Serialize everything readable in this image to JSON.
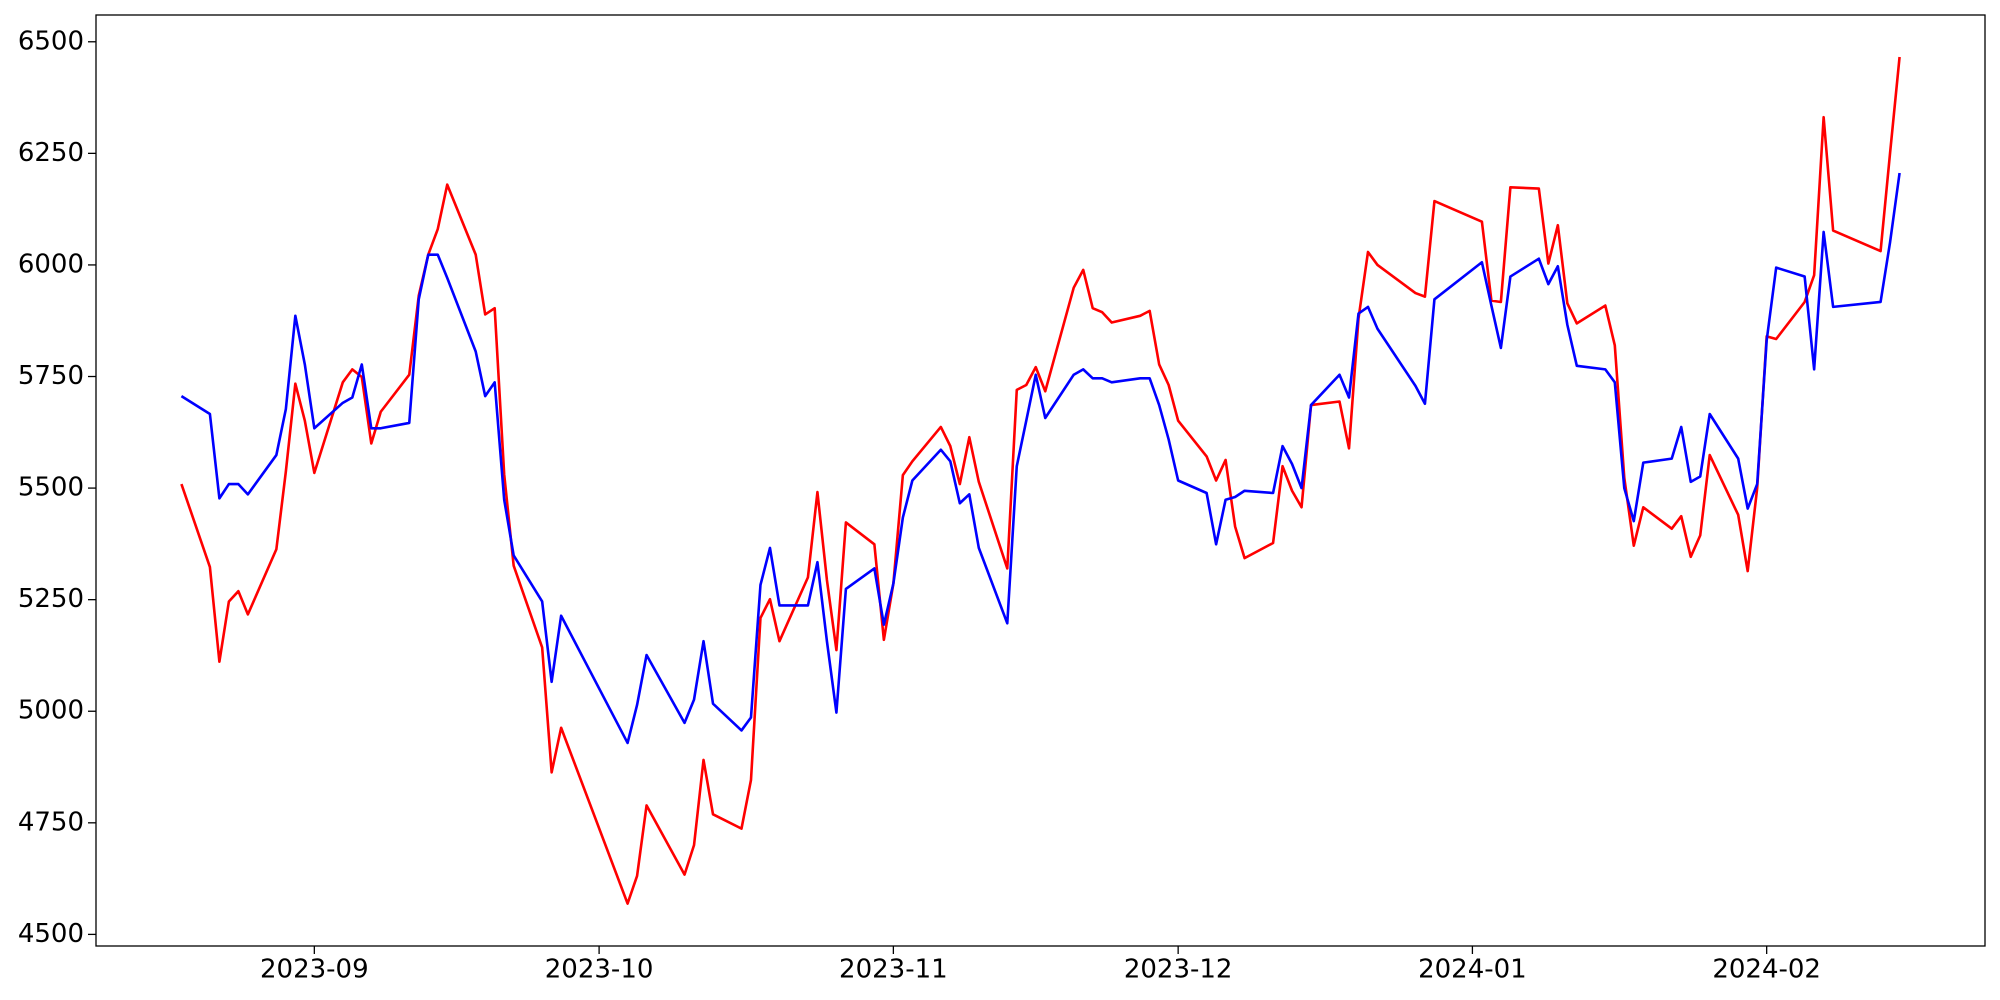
{
  "chart_data": {
    "type": "line",
    "x": [
      "2023-08-18",
      "2023-08-21",
      "2023-08-22",
      "2023-08-23",
      "2023-08-24",
      "2023-08-25",
      "2023-08-28",
      "2023-08-29",
      "2023-08-30",
      "2023-08-31",
      "2023-09-01",
      "2023-09-04",
      "2023-09-05",
      "2023-09-06",
      "2023-09-07",
      "2023-09-08",
      "2023-09-11",
      "2023-09-12",
      "2023-09-13",
      "2023-09-14",
      "2023-09-15",
      "2023-09-18",
      "2023-09-19",
      "2023-09-20",
      "2023-09-21",
      "2023-09-22",
      "2023-09-25",
      "2023-09-26",
      "2023-09-27",
      "2023-10-04",
      "2023-10-05",
      "2023-10-06",
      "2023-10-10",
      "2023-10-11",
      "2023-10-12",
      "2023-10-13",
      "2023-10-16",
      "2023-10-17",
      "2023-10-18",
      "2023-10-19",
      "2023-10-20",
      "2023-10-23",
      "2023-10-24",
      "2023-10-25",
      "2023-10-26",
      "2023-10-27",
      "2023-10-30",
      "2023-10-31",
      "2023-11-01",
      "2023-11-02",
      "2023-11-03",
      "2023-11-06",
      "2023-11-07",
      "2023-11-08",
      "2023-11-09",
      "2023-11-10",
      "2023-11-13",
      "2023-11-14",
      "2023-11-15",
      "2023-11-16",
      "2023-11-17",
      "2023-11-20",
      "2023-11-21",
      "2023-11-22",
      "2023-11-23",
      "2023-11-24",
      "2023-11-27",
      "2023-11-28",
      "2023-11-29",
      "2023-11-30",
      "2023-12-01",
      "2023-12-04",
      "2023-12-05",
      "2023-12-06",
      "2023-12-07",
      "2023-12-08",
      "2023-12-11",
      "2023-12-12",
      "2023-12-13",
      "2023-12-14",
      "2023-12-15",
      "2023-12-18",
      "2023-12-19",
      "2023-12-20",
      "2023-12-21",
      "2023-12-22",
      "2023-12-26",
      "2023-12-27",
      "2023-12-28",
      "2024-01-02",
      "2024-01-03",
      "2024-01-04",
      "2024-01-05",
      "2024-01-08",
      "2024-01-09",
      "2024-01-10",
      "2024-01-11",
      "2024-01-12",
      "2024-01-15",
      "2024-01-16",
      "2024-01-17",
      "2024-01-18",
      "2024-01-19",
      "2024-01-22",
      "2024-01-23",
      "2024-01-24",
      "2024-01-25",
      "2024-01-26",
      "2024-01-29",
      "2024-01-30",
      "2024-01-31",
      "2024-02-01",
      "2024-02-02",
      "2024-02-05",
      "2024-02-06",
      "2024-02-07",
      "2024-02-08",
      "2024-02-13",
      "2024-02-14",
      "2024-02-15"
    ],
    "series": [
      {
        "color": "#ff0000",
        "values": [
          5509,
          5323,
          5111,
          5246,
          5269,
          5217,
          5363,
          5537,
          5734,
          5651,
          5534,
          5737,
          5766,
          5749,
          5600,
          5671,
          5754,
          5931,
          6023,
          6080,
          6180,
          6023,
          5889,
          5903,
          5531,
          5326,
          5143,
          4863,
          4963,
          4569,
          4631,
          4789,
          4634,
          4700,
          4891,
          4769,
          4737,
          4846,
          5209,
          5251,
          5157,
          5300,
          5491,
          5294,
          5137,
          5423,
          5374,
          5160,
          5286,
          5529,
          5560,
          5637,
          5594,
          5509,
          5614,
          5514,
          5320,
          5720,
          5731,
          5771,
          5717,
          5949,
          5989,
          5903,
          5894,
          5871,
          5886,
          5897,
          5777,
          5731,
          5651,
          5571,
          5517,
          5563,
          5414,
          5343,
          5377,
          5549,
          5494,
          5457,
          5686,
          5694,
          5589,
          5880,
          6029,
          6000,
          5937,
          5929,
          6143,
          6097,
          5920,
          5917,
          6174,
          6171,
          6003,
          6089,
          5914,
          5869,
          5909,
          5820,
          5523,
          5371,
          5457,
          5409,
          5437,
          5346,
          5394,
          5574,
          5440,
          5314,
          5500,
          5840,
          5834,
          5917,
          5977,
          6331,
          6077,
          6031,
          6251,
          6466
        ]
      },
      {
        "color": "#0000ff",
        "values": [
          5706,
          5666,
          5477,
          5509,
          5509,
          5486,
          5574,
          5677,
          5886,
          5777,
          5634,
          5691,
          5703,
          5777,
          5634,
          5634,
          5646,
          5923,
          6023,
          6023,
          5971,
          5806,
          5706,
          5737,
          5474,
          5349,
          5246,
          5066,
          5214,
          4929,
          5014,
          5126,
          4974,
          5026,
          5157,
          5017,
          4957,
          4986,
          5283,
          5366,
          5237,
          5237,
          5334,
          5157,
          4997,
          5274,
          5320,
          5194,
          5286,
          5434,
          5517,
          5586,
          5560,
          5466,
          5486,
          5366,
          5197,
          5549,
          5651,
          5754,
          5657,
          5754,
          5766,
          5746,
          5746,
          5737,
          5746,
          5746,
          5686,
          5609,
          5517,
          5489,
          5374,
          5474,
          5480,
          5494,
          5489,
          5594,
          5554,
          5500,
          5686,
          5754,
          5703,
          5891,
          5906,
          5857,
          5729,
          5689,
          5923,
          6006,
          5909,
          5814,
          5974,
          6014,
          5957,
          5997,
          5866,
          5774,
          5766,
          5737,
          5500,
          5426,
          5557,
          5566,
          5637,
          5514,
          5526,
          5666,
          5566,
          5454,
          5509,
          5831,
          5994,
          5974,
          5766,
          6074,
          5906,
          5917,
          6051,
          6206
        ]
      }
    ],
    "xlim": [
      "2023-08-09",
      "2024-02-24"
    ],
    "xticks": [
      "2023-09",
      "2023-10",
      "2023-11",
      "2023-12",
      "2024-01",
      "2024-02"
    ],
    "ylim": [
      4474,
      6560
    ],
    "yticks": [
      4500,
      4750,
      5000,
      5250,
      5500,
      5750,
      6000,
      6250,
      6500
    ],
    "grid": false
  }
}
